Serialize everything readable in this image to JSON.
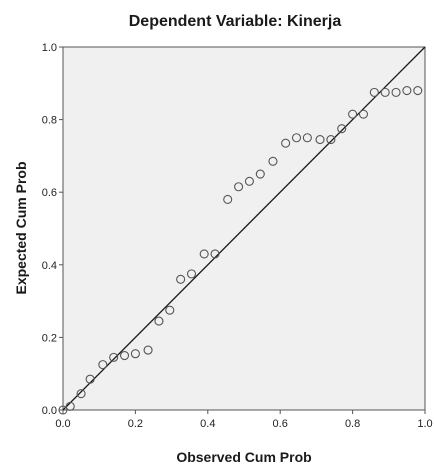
{
  "chart_data": {
    "type": "scatter",
    "title": "Dependent Variable: Kinerja",
    "xlabel": "Observed Cum Prob",
    "ylabel": "Expected Cum Prob",
    "xlim": [
      0,
      1
    ],
    "ylim": [
      0,
      1
    ],
    "x_ticks": [
      "0.0",
      "0.2",
      "0.4",
      "0.6",
      "0.8",
      "1.0"
    ],
    "y_ticks": [
      "0.0",
      "0.2",
      "0.4",
      "0.6",
      "0.8",
      "1.0"
    ],
    "reference_line": {
      "from": [
        0,
        0
      ],
      "to": [
        1,
        1
      ]
    },
    "grid": false,
    "colors": {
      "plot_background": "#f0f0f0",
      "marker_edge": "#555555",
      "line": "#1a1a1a"
    },
    "points": [
      {
        "x": 0.0,
        "y": 0.0
      },
      {
        "x": 0.02,
        "y": 0.01
      },
      {
        "x": 0.05,
        "y": 0.045
      },
      {
        "x": 0.075,
        "y": 0.085
      },
      {
        "x": 0.11,
        "y": 0.125
      },
      {
        "x": 0.14,
        "y": 0.145
      },
      {
        "x": 0.17,
        "y": 0.15
      },
      {
        "x": 0.2,
        "y": 0.155
      },
      {
        "x": 0.235,
        "y": 0.165
      },
      {
        "x": 0.265,
        "y": 0.245
      },
      {
        "x": 0.295,
        "y": 0.275
      },
      {
        "x": 0.325,
        "y": 0.36
      },
      {
        "x": 0.355,
        "y": 0.375
      },
      {
        "x": 0.39,
        "y": 0.43
      },
      {
        "x": 0.42,
        "y": 0.43
      },
      {
        "x": 0.455,
        "y": 0.58
      },
      {
        "x": 0.485,
        "y": 0.615
      },
      {
        "x": 0.515,
        "y": 0.63
      },
      {
        "x": 0.545,
        "y": 0.65
      },
      {
        "x": 0.58,
        "y": 0.685
      },
      {
        "x": 0.615,
        "y": 0.735
      },
      {
        "x": 0.645,
        "y": 0.75
      },
      {
        "x": 0.675,
        "y": 0.75
      },
      {
        "x": 0.71,
        "y": 0.745
      },
      {
        "x": 0.74,
        "y": 0.745
      },
      {
        "x": 0.77,
        "y": 0.775
      },
      {
        "x": 0.8,
        "y": 0.815
      },
      {
        "x": 0.83,
        "y": 0.815
      },
      {
        "x": 0.86,
        "y": 0.875
      },
      {
        "x": 0.89,
        "y": 0.875
      },
      {
        "x": 0.92,
        "y": 0.875
      },
      {
        "x": 0.95,
        "y": 0.88
      },
      {
        "x": 0.98,
        "y": 0.88
      }
    ]
  }
}
